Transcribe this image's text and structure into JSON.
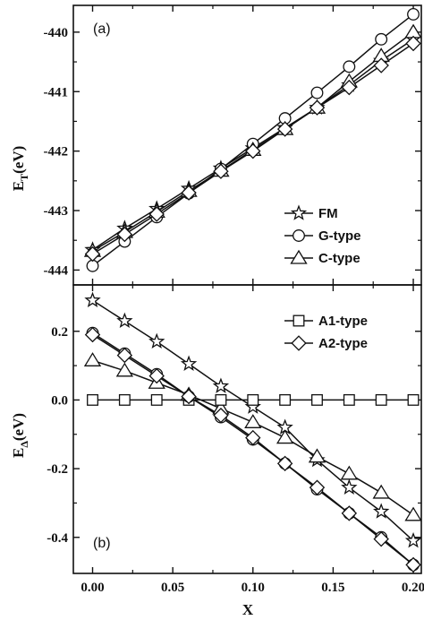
{
  "chart_data": [
    {
      "type": "line",
      "panel_label": "(a)",
      "ylabel": "E_T (eV)",
      "ylabel_main": "E",
      "ylabel_sub": "T",
      "ylabel_unit": "(eV)",
      "x": [
        0.0,
        0.02,
        0.04,
        0.06,
        0.08,
        0.1,
        0.12,
        0.14,
        0.16,
        0.18,
        0.2
      ],
      "xlim": [
        -0.012,
        0.205
      ],
      "ylim": [
        -444.25,
        -439.55
      ],
      "yticks": [
        -444,
        -443,
        -442,
        -441,
        -440
      ],
      "ytick_labels": [
        "-444",
        "-443",
        "-442",
        "-441",
        "-440"
      ],
      "legend_position": "lower-right",
      "series": [
        {
          "name": "FM",
          "marker": "star",
          "values": [
            -443.66,
            -443.3,
            -442.97,
            -442.63,
            -442.29,
            -441.95,
            -441.61,
            -441.27,
            -440.89,
            -440.48,
            -440.12
          ]
        },
        {
          "name": "G-type",
          "marker": "circle",
          "values": [
            -443.93,
            -443.52,
            -443.11,
            -442.71,
            -442.3,
            -441.88,
            -441.45,
            -441.02,
            -440.58,
            -440.12,
            -439.7
          ]
        },
        {
          "name": "C-type",
          "marker": "triangle",
          "values": [
            -443.68,
            -443.36,
            -443.02,
            -442.67,
            -442.33,
            -441.98,
            -441.63,
            -441.27,
            -440.83,
            -440.4,
            -440.0
          ]
        },
        {
          "name": "",
          "marker": "diamond",
          "values": [
            -443.73,
            -443.4,
            -443.06,
            -442.7,
            -442.34,
            -442.0,
            -441.63,
            -441.27,
            -440.93,
            -440.56,
            -440.19
          ]
        }
      ]
    },
    {
      "type": "line",
      "panel_label": "(b)",
      "ylabel": "E_Δ (eV)",
      "ylabel_main": "E",
      "ylabel_sub": "Δ",
      "ylabel_unit": "(eV)",
      "xlabel": "X",
      "x": [
        0.0,
        0.02,
        0.04,
        0.06,
        0.08,
        0.1,
        0.12,
        0.14,
        0.16,
        0.18,
        0.2
      ],
      "xlim": [
        -0.012,
        0.205
      ],
      "ylim": [
        -0.505,
        0.335
      ],
      "xticks": [
        0.0,
        0.05,
        0.1,
        0.15,
        0.2
      ],
      "xtick_labels": [
        "0.00",
        "0.05",
        "0.10",
        "0.15",
        "0.20"
      ],
      "yticks": [
        -0.4,
        -0.2,
        0.0,
        0.2
      ],
      "ytick_labels": [
        "-0.4",
        "-0.2",
        "0.0",
        "0.2"
      ],
      "legend_position": "top-right",
      "series": [
        {
          "name": "",
          "marker": "star",
          "values": [
            0.29,
            0.23,
            0.17,
            0.105,
            0.04,
            -0.02,
            -0.08,
            -0.175,
            -0.255,
            -0.325,
            -0.41
          ]
        },
        {
          "name": "",
          "marker": "triangle",
          "values": [
            0.115,
            0.085,
            0.05,
            0.015,
            -0.025,
            -0.065,
            -0.11,
            -0.165,
            -0.215,
            -0.27,
            -0.335
          ]
        },
        {
          "name": "A1-type",
          "marker": "square",
          "values": [
            0.0,
            0.0,
            0.0,
            0.0,
            0.0,
            0.0,
            0.0,
            0.0,
            0.0,
            0.0,
            0.0
          ]
        },
        {
          "name": "",
          "marker": "circle",
          "values": [
            0.195,
            0.135,
            0.075,
            0.01,
            -0.05,
            -0.115,
            -0.185,
            -0.26,
            -0.33,
            -0.4,
            -0.48
          ]
        },
        {
          "name": "A2-type",
          "marker": "diamond",
          "values": [
            0.19,
            0.13,
            0.07,
            0.01,
            -0.045,
            -0.11,
            -0.185,
            -0.255,
            -0.33,
            -0.405,
            -0.48
          ]
        }
      ]
    }
  ]
}
